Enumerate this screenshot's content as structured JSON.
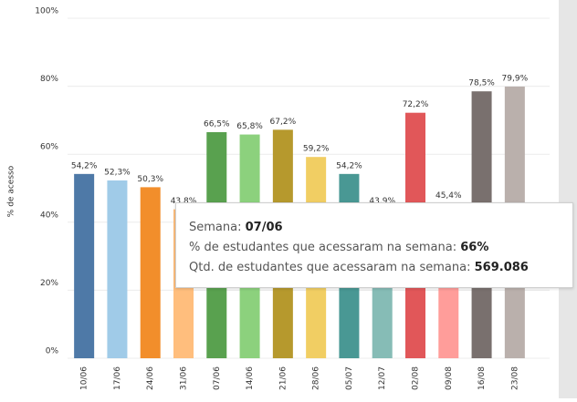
{
  "chart_data": {
    "type": "bar",
    "y_label": "% de acesso",
    "categories": [
      "10/06",
      "17/06",
      "24/06",
      "31/06",
      "07/06",
      "14/06",
      "21/06",
      "28/06",
      "05/07",
      "12/07",
      "02/08",
      "09/08",
      "16/08",
      "23/08"
    ],
    "values": [
      54.2,
      52.3,
      50.3,
      43.8,
      66.5,
      65.8,
      67.2,
      59.2,
      54.2,
      43.9,
      72.2,
      45.4,
      78.5,
      79.9
    ],
    "value_labels": [
      "54,2%",
      "52,3%",
      "50,3%",
      "43,8%",
      "66,5%",
      "65,8%",
      "67,2%",
      "59,2%",
      "54,2%",
      "43,9%",
      "72,2%",
      "45,4%",
      "78,5%",
      "79,9%"
    ],
    "colors": [
      "#4e79a7",
      "#a0cbe8",
      "#f28e2b",
      "#ffbe7d",
      "#59a14f",
      "#8cd17d",
      "#b6992d",
      "#f1ce63",
      "#499894",
      "#86bcb6",
      "#e15759",
      "#ff9d9a",
      "#79706e",
      "#bab0ac"
    ],
    "ylim": [
      0,
      100
    ],
    "yticks": [
      {
        "value": 0,
        "label": "0%"
      },
      {
        "value": 20,
        "label": "20%"
      },
      {
        "value": 40,
        "label": "40%"
      },
      {
        "value": 60,
        "label": "60%"
      },
      {
        "value": 80,
        "label": "80%"
      },
      {
        "value": 100,
        "label": "100%"
      }
    ],
    "grid": true,
    "tooltip": {
      "week_label": "Semana:",
      "week_value": "07/06",
      "pct_label": "% de estudantes que acessaram na semana:",
      "pct_value": "66%",
      "qty_label": "Qtd. de estudantes que acessaram na semana:",
      "qty_value": "569.086"
    }
  }
}
